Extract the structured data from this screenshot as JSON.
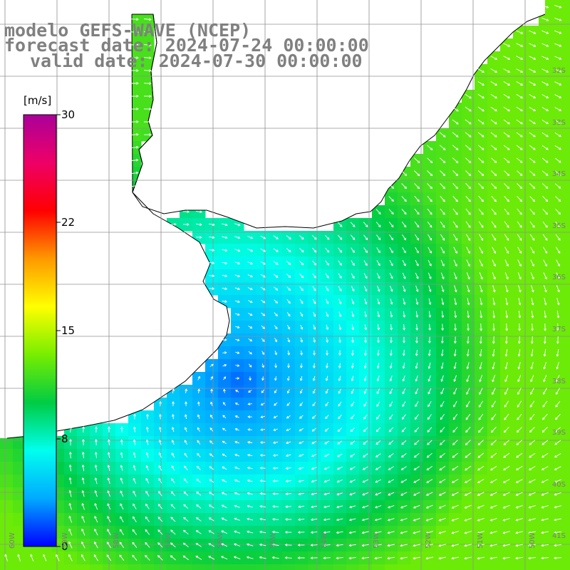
{
  "title": {
    "line1": "modelo GEFS-WAVE (NCEP)",
    "line2": "forecast date: 2024-07-24 00:00:00",
    "line3": "valid date: 2024-07-30 00:00:00"
  },
  "colorbar": {
    "unit": "[m/s]",
    "ticks": [
      "30",
      "22",
      "15",
      "8",
      "0"
    ],
    "range": [
      0,
      30
    ],
    "stops": [
      "#0000ff",
      "#00aaff",
      "#00ffee",
      "#00cc44",
      "#77ee00",
      "#ffff00",
      "#ff9900",
      "#ff0000",
      "#ee0066",
      "#aa0099"
    ]
  },
  "axes": {
    "lat_labels": [
      "32S",
      "33S",
      "34S",
      "35S",
      "36S",
      "37S",
      "38S",
      "39S",
      "40S",
      "41S"
    ],
    "lon_labels": [
      "60W",
      "59W",
      "58W",
      "57W",
      "56W",
      "55W",
      "54W",
      "53W",
      "52W",
      "51W",
      "50W"
    ]
  },
  "wind_field": {
    "variable": "wind speed and direction",
    "low_center_lon": -55.5,
    "low_center_lat": -37.9,
    "speed_min_ms": 2,
    "speed_max_ms": 12
  },
  "colors": {
    "land": "#ffffff",
    "coastline": "#000000",
    "grid": "#909090",
    "arrows": "#ffffff",
    "title_text": "#808080"
  }
}
